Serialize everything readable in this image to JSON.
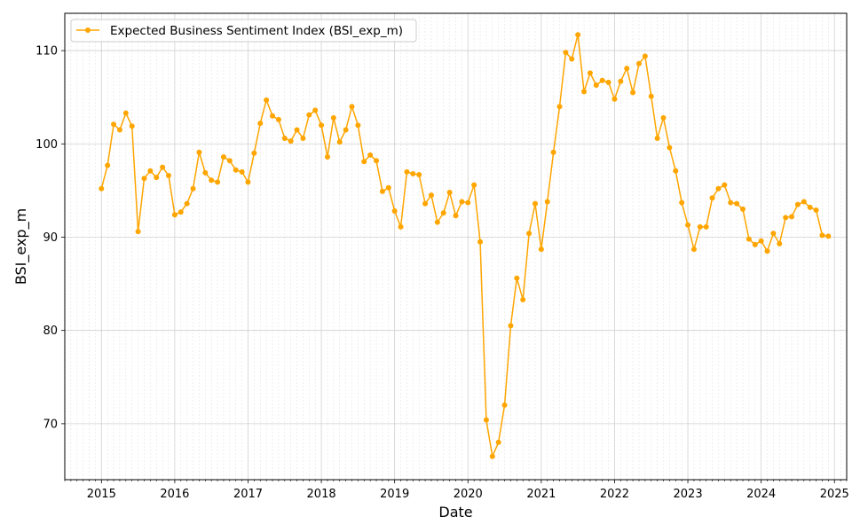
{
  "chart_data": {
    "type": "line",
    "xlabel": "Date",
    "ylabel": "BSI_exp_m",
    "x_start": "2015-01",
    "x_ticks": [
      "2015",
      "2016",
      "2017",
      "2018",
      "2019",
      "2020",
      "2021",
      "2022",
      "2023",
      "2024",
      "2025"
    ],
    "y_ticks": [
      70,
      80,
      90,
      100,
      110
    ],
    "xlim": [
      "2014-07",
      "2025-03"
    ],
    "ylim": [
      64,
      114
    ],
    "grid": true,
    "legend_position": "top-left",
    "series": [
      {
        "name": "Expected Business Sentiment Index (BSI_exp_m)",
        "color": "#ffa500",
        "marker": "circle",
        "values": [
          95.2,
          97.7,
          102.1,
          101.5,
          103.3,
          101.9,
          90.6,
          96.3,
          97.1,
          96.4,
          97.5,
          96.6,
          92.4,
          92.7,
          93.6,
          95.2,
          99.1,
          96.9,
          96.1,
          95.9,
          98.6,
          98.2,
          97.2,
          97.0,
          95.9,
          99.0,
          102.2,
          104.7,
          103.0,
          102.6,
          100.6,
          100.3,
          101.5,
          100.6,
          103.1,
          103.6,
          102.0,
          98.6,
          102.8,
          100.2,
          101.5,
          104.0,
          102.0,
          98.1,
          98.8,
          98.2,
          94.9,
          95.3,
          92.8,
          91.1,
          97.0,
          96.8,
          96.7,
          93.6,
          94.5,
          91.6,
          92.6,
          94.8,
          92.3,
          93.8,
          93.7,
          95.6,
          89.5,
          70.4,
          66.5,
          68.0,
          72.0,
          80.5,
          85.6,
          83.3,
          90.4,
          93.6,
          88.7,
          93.8,
          99.1,
          104.0,
          109.8,
          109.1,
          111.7,
          105.6,
          107.6,
          106.3,
          106.8,
          106.6,
          104.8,
          106.7,
          108.1,
          105.5,
          108.6,
          109.4,
          105.1,
          100.6,
          102.8,
          99.6,
          97.1,
          93.7,
          91.3,
          88.7,
          91.1,
          91.1,
          94.2,
          95.2,
          95.6,
          93.7,
          93.6,
          93.0,
          89.8,
          89.2,
          89.6,
          88.5,
          90.4,
          89.3,
          92.1,
          92.2,
          93.5,
          93.8,
          93.2,
          92.9,
          90.2,
          90.1
        ]
      }
    ]
  }
}
